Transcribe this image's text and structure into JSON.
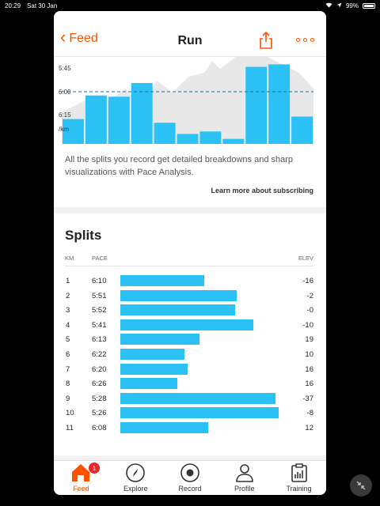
{
  "status": {
    "time": "20:29",
    "date": "Sat 30 Jan",
    "battery": "99%"
  },
  "header": {
    "back_label": "Feed",
    "title": "Run"
  },
  "chart": {
    "y_ticks": [
      "5:45",
      "6:00",
      "6:15",
      "/km"
    ],
    "note": "All the splits you record get detailed breakdowns and sharp visualizations with Pace Analysis.",
    "learn_more": "Learn more about subscribing"
  },
  "splits": {
    "title": "Splits",
    "headers": {
      "km": "KM",
      "pace": "PACE",
      "elev": "ELEV"
    },
    "rows": [
      {
        "km": "1",
        "pace": "6:10",
        "elev": "-16",
        "seconds": 370
      },
      {
        "km": "2",
        "pace": "5:51",
        "elev": "-2",
        "seconds": 351
      },
      {
        "km": "3",
        "pace": "5:52",
        "elev": "-0",
        "seconds": 352
      },
      {
        "km": "4",
        "pace": "5:41",
        "elev": "-10",
        "seconds": 341
      },
      {
        "km": "5",
        "pace": "6:13",
        "elev": "19",
        "seconds": 373
      },
      {
        "km": "6",
        "pace": "6:22",
        "elev": "10",
        "seconds": 382
      },
      {
        "km": "7",
        "pace": "6:20",
        "elev": "16",
        "seconds": 380
      },
      {
        "km": "8",
        "pace": "6:26",
        "elev": "16",
        "seconds": 386
      },
      {
        "km": "9",
        "pace": "5:28",
        "elev": "-37",
        "seconds": 328
      },
      {
        "km": "10",
        "pace": "5:26",
        "elev": "-8",
        "seconds": 326
      },
      {
        "km": "11",
        "pace": "6:08",
        "elev": "12",
        "seconds": 368
      }
    ]
  },
  "tabs": [
    {
      "label": "Feed",
      "icon": "home-icon",
      "active": true,
      "badge": "1"
    },
    {
      "label": "Explore",
      "icon": "compass-icon",
      "active": false
    },
    {
      "label": "Record",
      "icon": "record-icon",
      "active": false
    },
    {
      "label": "Profile",
      "icon": "profile-icon",
      "active": false
    },
    {
      "label": "Training",
      "icon": "training-icon",
      "active": false
    }
  ],
  "colors": {
    "accent": "#fc5200",
    "bar": "#2bc1f5",
    "badge": "#e8262a"
  }
}
